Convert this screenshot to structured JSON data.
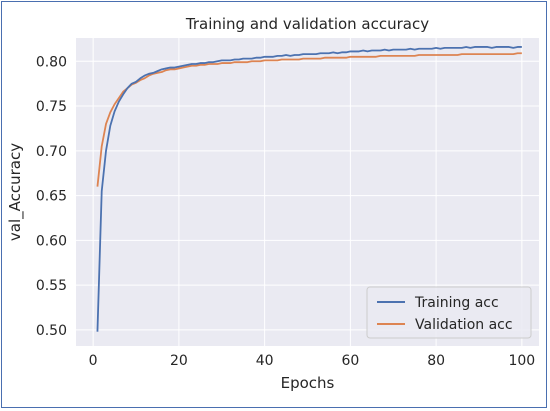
{
  "chart_data": {
    "type": "line",
    "title": "Training and validation accuracy",
    "xlabel": "Epochs",
    "ylabel": "val_Accuracy",
    "xlim": [
      -4,
      104
    ],
    "ylim": [
      0.482,
      0.826
    ],
    "x_ticks": [
      0,
      20,
      40,
      60,
      80,
      100
    ],
    "y_ticks": [
      0.5,
      0.55,
      0.6,
      0.65,
      0.7,
      0.75,
      0.8
    ],
    "grid": true,
    "legend_position": "lower-right",
    "background_color": "#eaeaf2",
    "series": [
      {
        "name": "Training acc",
        "color": "#4c72b0",
        "x": [
          1,
          2,
          3,
          4,
          5,
          6,
          7,
          8,
          9,
          10,
          11,
          12,
          13,
          14,
          15,
          16,
          17,
          18,
          19,
          20,
          21,
          22,
          23,
          24,
          25,
          26,
          27,
          28,
          29,
          30,
          31,
          32,
          33,
          34,
          35,
          36,
          37,
          38,
          39,
          40,
          41,
          42,
          43,
          44,
          45,
          46,
          47,
          48,
          49,
          50,
          51,
          52,
          53,
          54,
          55,
          56,
          57,
          58,
          59,
          60,
          61,
          62,
          63,
          64,
          65,
          66,
          67,
          68,
          69,
          70,
          71,
          72,
          73,
          74,
          75,
          76,
          77,
          78,
          79,
          80,
          81,
          82,
          83,
          84,
          85,
          86,
          87,
          88,
          89,
          90,
          91,
          92,
          93,
          94,
          95,
          96,
          97,
          98,
          99,
          100
        ],
        "values": [
          0.498,
          0.655,
          0.7,
          0.728,
          0.744,
          0.755,
          0.763,
          0.77,
          0.775,
          0.777,
          0.781,
          0.784,
          0.786,
          0.787,
          0.789,
          0.791,
          0.792,
          0.793,
          0.793,
          0.794,
          0.795,
          0.796,
          0.797,
          0.797,
          0.798,
          0.798,
          0.799,
          0.799,
          0.8,
          0.801,
          0.801,
          0.801,
          0.802,
          0.802,
          0.803,
          0.803,
          0.803,
          0.804,
          0.804,
          0.805,
          0.805,
          0.805,
          0.806,
          0.806,
          0.807,
          0.806,
          0.807,
          0.807,
          0.808,
          0.808,
          0.808,
          0.808,
          0.809,
          0.809,
          0.809,
          0.81,
          0.809,
          0.81,
          0.81,
          0.811,
          0.811,
          0.811,
          0.812,
          0.811,
          0.812,
          0.812,
          0.812,
          0.813,
          0.812,
          0.813,
          0.813,
          0.813,
          0.813,
          0.814,
          0.813,
          0.814,
          0.814,
          0.814,
          0.814,
          0.815,
          0.814,
          0.815,
          0.815,
          0.815,
          0.815,
          0.815,
          0.816,
          0.815,
          0.816,
          0.816,
          0.816,
          0.816,
          0.815,
          0.816,
          0.816,
          0.816,
          0.816,
          0.815,
          0.816,
          0.816
        ]
      },
      {
        "name": "Validation acc",
        "color": "#dd8452",
        "x": [
          1,
          2,
          3,
          4,
          5,
          6,
          7,
          8,
          9,
          10,
          11,
          12,
          13,
          14,
          15,
          16,
          17,
          18,
          19,
          20,
          21,
          22,
          23,
          24,
          25,
          26,
          27,
          28,
          29,
          30,
          31,
          32,
          33,
          34,
          35,
          36,
          37,
          38,
          39,
          40,
          41,
          42,
          43,
          44,
          45,
          46,
          47,
          48,
          49,
          50,
          51,
          52,
          53,
          54,
          55,
          56,
          57,
          58,
          59,
          60,
          61,
          62,
          63,
          64,
          65,
          66,
          67,
          68,
          69,
          70,
          71,
          72,
          73,
          74,
          75,
          76,
          77,
          78,
          79,
          80,
          81,
          82,
          83,
          84,
          85,
          86,
          87,
          88,
          89,
          90,
          91,
          92,
          93,
          94,
          95,
          96,
          97,
          98,
          99,
          100
        ],
        "values": [
          0.66,
          0.705,
          0.73,
          0.743,
          0.752,
          0.759,
          0.766,
          0.77,
          0.774,
          0.776,
          0.779,
          0.781,
          0.784,
          0.786,
          0.787,
          0.788,
          0.79,
          0.791,
          0.791,
          0.792,
          0.793,
          0.794,
          0.795,
          0.795,
          0.796,
          0.796,
          0.797,
          0.797,
          0.797,
          0.798,
          0.798,
          0.798,
          0.799,
          0.799,
          0.799,
          0.799,
          0.8,
          0.8,
          0.8,
          0.801,
          0.801,
          0.801,
          0.801,
          0.802,
          0.802,
          0.802,
          0.802,
          0.802,
          0.803,
          0.803,
          0.803,
          0.803,
          0.803,
          0.804,
          0.804,
          0.804,
          0.804,
          0.804,
          0.804,
          0.805,
          0.805,
          0.805,
          0.805,
          0.805,
          0.805,
          0.805,
          0.806,
          0.806,
          0.806,
          0.806,
          0.806,
          0.806,
          0.806,
          0.806,
          0.806,
          0.807,
          0.807,
          0.807,
          0.807,
          0.807,
          0.807,
          0.807,
          0.807,
          0.807,
          0.807,
          0.808,
          0.808,
          0.808,
          0.808,
          0.808,
          0.808,
          0.808,
          0.808,
          0.808,
          0.808,
          0.808,
          0.808,
          0.808,
          0.809,
          0.809
        ]
      }
    ]
  }
}
